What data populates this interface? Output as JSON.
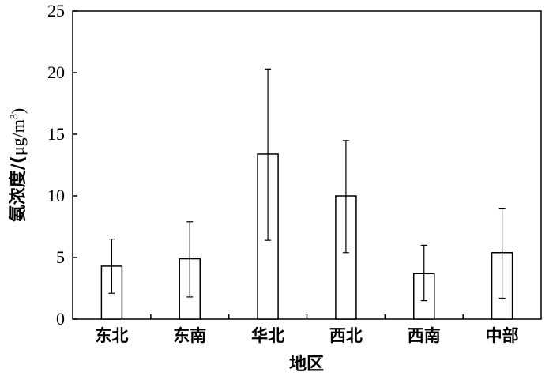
{
  "chart_data": {
    "type": "bar",
    "categories": [
      "东北",
      "东南",
      "华北",
      "西北",
      "西南",
      "中部"
    ],
    "values": [
      4.3,
      4.9,
      13.4,
      10.0,
      3.7,
      5.4
    ],
    "error_lower": [
      2.1,
      1.8,
      6.4,
      5.4,
      1.5,
      1.7
    ],
    "error_upper": [
      6.5,
      7.9,
      20.3,
      14.5,
      6.0,
      9.0
    ],
    "xlabel": "地区",
    "ylabel_main": "氨浓度/(",
    "ylabel_unit": "μg/m",
    "ylabel_sup": "3",
    "ylabel_end": ")",
    "ylim": [
      0,
      25
    ],
    "yticks": [
      "0",
      "5",
      "10",
      "15",
      "20",
      "25"
    ],
    "grid": false,
    "bar_fill": "#ffffff",
    "bar_stroke": "#000000"
  }
}
